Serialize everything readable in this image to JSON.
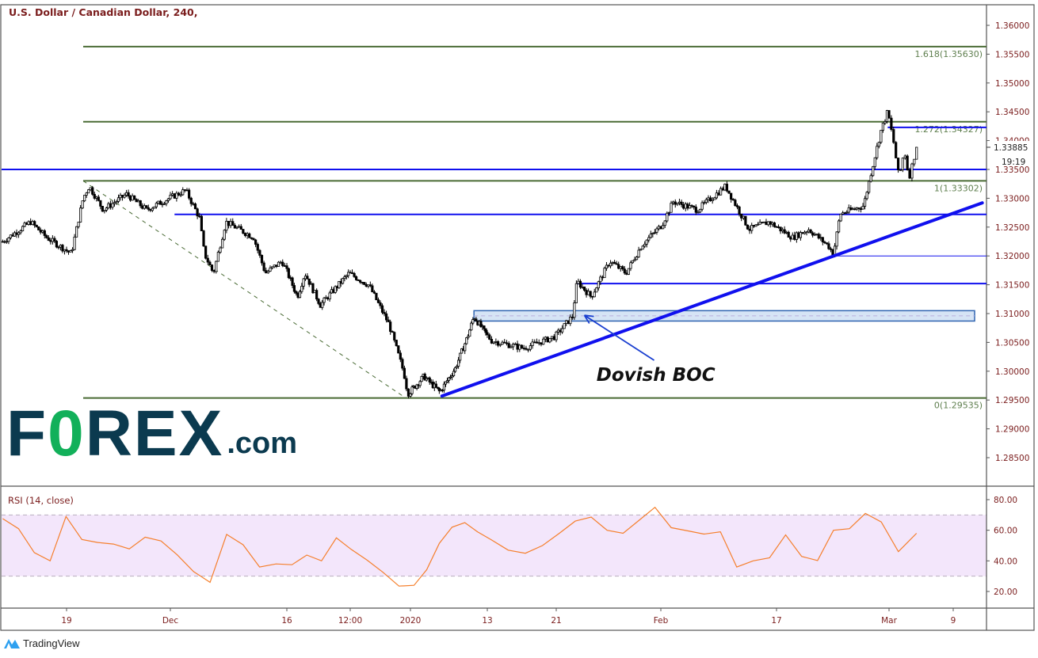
{
  "header": {
    "title": "U.S. Dollar / Canadian Dollar, 240,"
  },
  "rsi_panel": {
    "title": "RSI (14, close)"
  },
  "logo": {
    "text": "FOREX.com",
    "f": "F",
    "o": "0",
    "rex": "REX",
    "com": ".com"
  },
  "footer": {
    "brand": "TradingView"
  },
  "colors": {
    "axis_text": "#7a1c1c",
    "fib": "#4a6b35",
    "blue_lines": "#1010ee",
    "rsi_line": "#f57f2c",
    "rsi_band": "#f3e6fb",
    "zone_fill": "#d6e4f5",
    "logo_dark": "#0b3a4f",
    "logo_green": "#12b05a"
  },
  "chart_data": [
    {
      "type": "candlestick",
      "title": "U.S. Dollar / Canadian Dollar, 240,",
      "ylim": [
        1.28,
        1.3625
      ],
      "y_ticks": [
        "1.36000",
        "1.35500",
        "1.35000",
        "1.34500",
        "1.34000",
        "1.33500",
        "1.33000",
        "1.32500",
        "1.32000",
        "1.31500",
        "1.31000",
        "1.30500",
        "1.30000",
        "1.29500",
        "1.29000",
        "1.28500"
      ],
      "x_ticks": [
        {
          "label": "19",
          "date": "2019-11-19T00:00"
        },
        {
          "label": "Dec",
          "date": "2019-12-02T00:00"
        },
        {
          "label": "16",
          "date": "2019-12-16T00:00"
        },
        {
          "label": "12:00",
          "date": "2019-12-24T12:00"
        },
        {
          "label": "2020",
          "date": "2020-01-01T00:00"
        },
        {
          "label": "13",
          "date": "2020-01-13T00:00"
        },
        {
          "label": "21",
          "date": "2020-01-21T00:00"
        },
        {
          "label": "Feb",
          "date": "2020-02-03T00:00"
        },
        {
          "label": "17",
          "date": "2020-02-17T00:00"
        },
        {
          "label": "Mar",
          "date": "2020-03-02T00:00"
        },
        {
          "label": "9",
          "date": "2020-03-09T00:00"
        }
      ],
      "last_price": "1.33885",
      "countdown": "19:19",
      "price_path": [
        [
          "2019-11-11T00:00",
          1.3225
        ],
        [
          "2019-11-14T12:00",
          1.3259
        ],
        [
          "2019-11-16T12:00",
          1.3232
        ],
        [
          "2019-11-19T14:00",
          1.3204
        ],
        [
          "2019-11-21T02:00",
          1.3301
        ],
        [
          "2019-11-21T20:00",
          1.3321
        ],
        [
          "2019-11-23T14:00",
          1.328
        ],
        [
          "2019-11-26T12:00",
          1.3307
        ],
        [
          "2019-11-29T00:00",
          1.328
        ],
        [
          "2019-12-03T20:00",
          1.3314
        ],
        [
          "2019-12-05T12:00",
          1.3266
        ],
        [
          "2019-12-06T02:00",
          1.3204
        ],
        [
          "2019-12-07T04:00",
          1.317
        ],
        [
          "2019-12-08T16:00",
          1.3259
        ],
        [
          "2019-12-12T00:00",
          1.3232
        ],
        [
          "2019-12-13T10:00",
          1.317
        ],
        [
          "2019-12-15T10:00",
          1.3191
        ],
        [
          "2019-12-17T10:00",
          1.3129
        ],
        [
          "2019-12-18T10:00",
          1.317
        ],
        [
          "2019-12-20T12:00",
          1.3115
        ],
        [
          "2019-12-24T08:00",
          1.317
        ],
        [
          "2019-12-26T20:00",
          1.3149
        ],
        [
          "2019-12-29T08:00",
          1.3081
        ],
        [
          "2019-12-31T04:00",
          1.2998
        ],
        [
          "2019-12-31T16:00",
          1.2961
        ],
        [
          "2020-01-03T02:00",
          1.2991
        ],
        [
          "2020-01-05T14:00",
          1.2964
        ],
        [
          "2020-01-08T00:00",
          1.3005
        ],
        [
          "2020-01-09T22:00",
          1.306
        ],
        [
          "2020-01-10T22:00",
          1.3095
        ],
        [
          "2020-01-13T12:00",
          1.3053
        ],
        [
          "2020-01-17T04:00",
          1.304
        ],
        [
          "2020-01-20T20:00",
          1.306
        ],
        [
          "2020-01-23T00:00",
          1.3095
        ],
        [
          "2020-01-23T14:00",
          1.3156
        ],
        [
          "2020-01-25T08:00",
          1.3129
        ],
        [
          "2020-01-27T16:00",
          1.3191
        ],
        [
          "2020-01-29T16:00",
          1.317
        ],
        [
          "2020-01-31T14:00",
          1.3218
        ],
        [
          "2020-02-03T02:00",
          1.3253
        ],
        [
          "2020-02-04T12:00",
          1.3294
        ],
        [
          "2020-02-07T10:00",
          1.328
        ],
        [
          "2020-02-10T20:00",
          1.3321
        ],
        [
          "2020-02-13T16:00",
          1.3246
        ],
        [
          "2020-02-16T02:00",
          1.3259
        ],
        [
          "2020-02-19T00:00",
          1.3232
        ],
        [
          "2020-02-21T00:00",
          1.3246
        ],
        [
          "2020-02-23T10:00",
          1.3218
        ],
        [
          "2020-02-24T02:00",
          1.3204
        ],
        [
          "2020-02-24T22:00",
          1.3273
        ],
        [
          "2020-02-27T20:00",
          1.3287
        ],
        [
          "2020-02-28T20:00",
          1.3349
        ],
        [
          "2020-03-01T00:00",
          1.3417
        ],
        [
          "2020-03-01T20:00",
          1.3451
        ],
        [
          "2020-03-02T12:00",
          1.3397
        ],
        [
          "2020-03-03T02:00",
          1.3335
        ],
        [
          "2020-03-03T16:00",
          1.3384
        ],
        [
          "2020-03-04T04:00",
          1.3335
        ],
        [
          "2020-03-05T00:00",
          1.33885
        ]
      ],
      "fib_levels": [
        {
          "label": "1.618(1.35630)",
          "price": 1.3563
        },
        {
          "label": "1.272(1.34327)",
          "price": 1.34327
        },
        {
          "label": "1(1.33302)",
          "price": 1.33302
        },
        {
          "label": "0(1.29535)",
          "price": 1.29535
        }
      ],
      "fib_start": "2019-11-21T02:00",
      "horizontal_lines": [
        {
          "price": 1.335,
          "from": "2019-11-01T00:00",
          "weight": "thick"
        },
        {
          "price": 1.3272,
          "from": "2019-12-02T12:00",
          "weight": "thick"
        },
        {
          "price": 1.3423,
          "from": "2020-03-01T20:00",
          "weight": "thick"
        },
        {
          "price": 1.3152,
          "from": "2020-01-23T14:00",
          "weight": "thick"
        },
        {
          "price": 1.32,
          "from": "2020-02-24T02:00",
          "weight": "thin"
        }
      ],
      "zone": {
        "top": 1.3105,
        "bottom": 1.3087,
        "from": "2020-01-10T22:00",
        "to": "2020-03-11T08:00"
      },
      "trendline": {
        "from": [
          "2020-01-05T22:00",
          1.2957
        ],
        "to": [
          "2020-03-12T04:00",
          1.3292
        ]
      },
      "dashed_diagonal": {
        "from": [
          "2019-11-21T02:00",
          1.33302
        ],
        "to": [
          "2019-12-31T10:00",
          1.29535
        ]
      },
      "arrow": {
        "from": [
          "2020-02-02T04:00",
          1.3019
        ],
        "to": [
          "2020-01-24T12:00",
          1.3097
        ]
      },
      "annotation": {
        "text": "Dovish BOC",
        "at": [
          "2020-01-26T00:00",
          1.2983
        ]
      }
    },
    {
      "type": "line",
      "title": "RSI (14, close)",
      "ylim": [
        10,
        85
      ],
      "y_ticks": [
        "80.00",
        "60.00",
        "40.00",
        "20.00"
      ],
      "band": [
        30,
        70
      ],
      "range": [
        "2019-11-11T00:00",
        "2020-03-05T00:00"
      ],
      "values": [
        67.6,
        61,
        45.4,
        40,
        69,
        54,
        52,
        51,
        47.8,
        55.5,
        53,
        44,
        33,
        26,
        57.3,
        50.5,
        36,
        38,
        37.5,
        43.8,
        40,
        55,
        47.5,
        40.5,
        32.5,
        23.5,
        24,
        34.2,
        51.5,
        62,
        65,
        59,
        53.8,
        47,
        45,
        50,
        58,
        66,
        68.6,
        60,
        58,
        66.5,
        75,
        61.7,
        59.6,
        57.5,
        59,
        36,
        40,
        42,
        57,
        42.9,
        40.2,
        60,
        61,
        71,
        65.4,
        46,
        58
      ]
    }
  ]
}
